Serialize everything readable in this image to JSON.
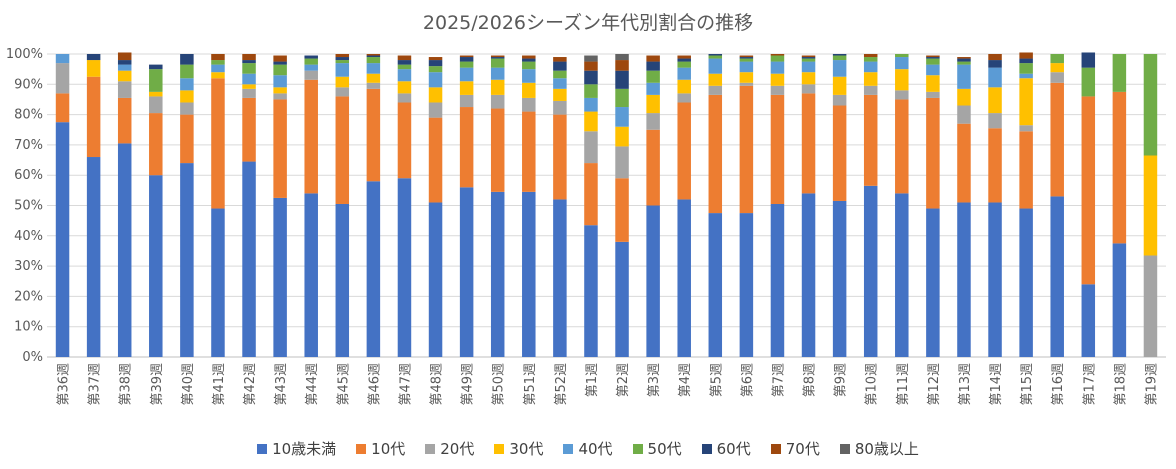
{
  "chart_data": {
    "type": "bar",
    "stacked": true,
    "title": "2025/2026シーズン年代別割合の推移",
    "xlabel": "",
    "ylabel": "",
    "ylim": [
      0,
      100
    ],
    "y_ticks": [
      "0%",
      "10%",
      "20%",
      "30%",
      "40%",
      "50%",
      "60%",
      "70%",
      "80%",
      "90%",
      "100%"
    ],
    "grid": true,
    "legend_position": "bottom",
    "categories": [
      "第36週",
      "第37週",
      "第38週",
      "第39週",
      "第40週",
      "第41週",
      "第42週",
      "第43週",
      "第44週",
      "第45週",
      "第46週",
      "第47週",
      "第48週",
      "第49週",
      "第50週",
      "第51週",
      "第52週",
      "第1週",
      "第2週",
      "第3週",
      "第4週",
      "第5週",
      "第6週",
      "第7週",
      "第8週",
      "第9週",
      "第10週",
      "第11週",
      "第12週",
      "第13週",
      "第14週",
      "第15週",
      "第16週",
      "第17週",
      "第18週",
      "第19週"
    ],
    "series": [
      {
        "name": "10歳未満",
        "color": "#4472C4",
        "values": [
          77.5,
          66,
          70.5,
          60,
          64,
          49,
          64.5,
          52.5,
          54,
          50.5,
          58,
          59,
          51,
          56,
          54.5,
          54.5,
          52,
          43.5,
          38,
          50,
          52,
          47.5,
          47.5,
          50.5,
          54,
          51.5,
          56.5,
          54,
          49,
          51,
          51,
          49,
          53,
          24,
          37.5,
          0
        ]
      },
      {
        "name": "10代",
        "color": "#ED7D31",
        "values": [
          9.5,
          26.5,
          15,
          20.5,
          16,
          43,
          21,
          32.5,
          37.5,
          35.5,
          30.5,
          25,
          28,
          26.5,
          27.5,
          26.5,
          28,
          20.5,
          21,
          25,
          32,
          39,
          42,
          36,
          33,
          31.5,
          30,
          31,
          36.5,
          26,
          24.5,
          25.5,
          37.5,
          62,
          50,
          0
        ]
      },
      {
        "name": "20代",
        "color": "#A5A5A5",
        "values": [
          10,
          0,
          5.5,
          5.5,
          4,
          0,
          3,
          2,
          3,
          3,
          2,
          3,
          5,
          4,
          4.5,
          4.5,
          4.5,
          10.5,
          10.5,
          5.5,
          3,
          3,
          1,
          3,
          3,
          3.5,
          3,
          3,
          2,
          6,
          5,
          2,
          3.5,
          0,
          0,
          33.5
        ]
      },
      {
        "name": "30代",
        "color": "#FFC000",
        "values": [
          0,
          5.5,
          3.5,
          1.5,
          4,
          2,
          1.5,
          2,
          0,
          3.5,
          3,
          4,
          5,
          4.5,
          5,
          5,
          4,
          6.5,
          6.5,
          6,
          4.5,
          4,
          3.5,
          4,
          4,
          6,
          4.5,
          7,
          5.5,
          5.5,
          8.5,
          15.5,
          3,
          0,
          0,
          33
        ]
      },
      {
        "name": "40代",
        "color": "#5B9BD5",
        "values": [
          3,
          0,
          2,
          0,
          4,
          2.5,
          3.5,
          4,
          2,
          4.5,
          3.5,
          4,
          5,
          4.5,
          4,
          4.5,
          3.5,
          4.5,
          6.5,
          4,
          4,
          5,
          3.5,
          4,
          3.5,
          5.5,
          3.5,
          4,
          3.5,
          8,
          6.5,
          1.5,
          0,
          0,
          0,
          0
        ]
      },
      {
        "name": "50代",
        "color": "#70AD47",
        "values": [
          0,
          0,
          0,
          7.5,
          4.5,
          1.5,
          3.5,
          3.5,
          2,
          1,
          2,
          1.5,
          2,
          2,
          3,
          2.5,
          2.5,
          4.5,
          6,
          4,
          2,
          1,
          1,
          2,
          1,
          1.5,
          1.5,
          1,
          2,
          1,
          0,
          3.5,
          3,
          9.5,
          12.5,
          33.5
        ]
      },
      {
        "name": "60代",
        "color": "#264478",
        "values": [
          0,
          2,
          1.5,
          1.5,
          3.5,
          0,
          1,
          1,
          1,
          1,
          0.5,
          1.5,
          2,
          1.5,
          0.5,
          1,
          3,
          4.5,
          6,
          3,
          1,
          0.5,
          0.5,
          0,
          0.5,
          0.5,
          0,
          0,
          0.5,
          1,
          2.5,
          1.5,
          0,
          5,
          0,
          0
        ]
      },
      {
        "name": "70代",
        "color": "#9E480E",
        "values": [
          0,
          0,
          2.5,
          0,
          0,
          2,
          2,
          2,
          0,
          1,
          0.5,
          1.5,
          1,
          0.5,
          0.5,
          1,
          1.5,
          3,
          3.5,
          2,
          1,
          0,
          0.5,
          0.5,
          0.5,
          0,
          1,
          0,
          0.5,
          0.5,
          2,
          2,
          0,
          0,
          0,
          0
        ]
      },
      {
        "name": "80歳以上",
        "color": "#636363",
        "values": [
          0,
          0,
          0,
          0,
          0,
          0,
          0,
          0,
          0,
          0,
          0,
          0,
          0,
          0,
          0,
          0,
          0,
          2,
          2,
          0,
          0,
          0,
          0,
          0,
          0,
          0,
          0,
          0,
          0,
          0,
          0,
          0,
          0,
          0,
          0,
          0
        ]
      }
    ]
  }
}
